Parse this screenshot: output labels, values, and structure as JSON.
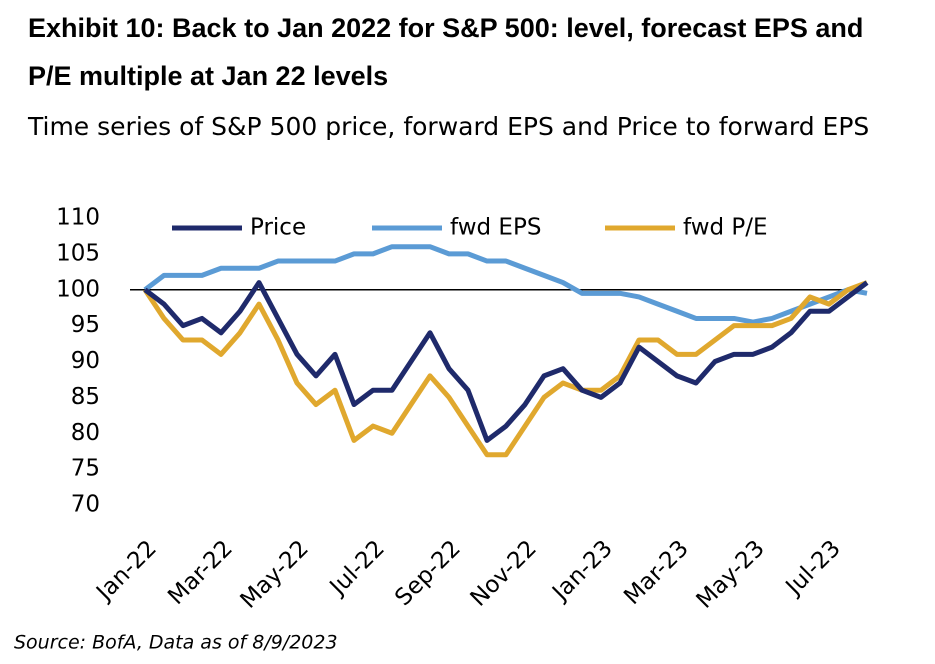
{
  "chart_data": {
    "type": "line",
    "title": "Exhibit 10: Back to Jan 2022 for S&P 500: level, forecast EPS and P/E multiple at Jan 22 levels",
    "subtitle": "Time series of S&P 500 price, forward EPS and Price to forward EPS",
    "source": "Source: BofA, Data as of 8/9/2023",
    "categories": [
      "Jan-22",
      null,
      null,
      null,
      "Mar-22",
      null,
      null,
      null,
      "May-22",
      null,
      null,
      null,
      "Jul-22",
      null,
      null,
      null,
      "Sep-22",
      null,
      null,
      null,
      "Nov-22",
      null,
      null,
      null,
      "Jan-23",
      null,
      null,
      null,
      "Mar-23",
      null,
      null,
      null,
      "May-23",
      null,
      null,
      null,
      "Jul-23",
      null,
      null
    ],
    "series": [
      {
        "name": "Price",
        "color": "#1f2a6b",
        "values": [
          100,
          98,
          95,
          96,
          94,
          97,
          101,
          96,
          91,
          88,
          91,
          84,
          86,
          86,
          90,
          94,
          89,
          86,
          79,
          81,
          84,
          88,
          89,
          86,
          85,
          87,
          92,
          90,
          88,
          87,
          90,
          91,
          91,
          92,
          94,
          97,
          97,
          99,
          101
        ]
      },
      {
        "name": "fwd EPS",
        "color": "#5b9bd5",
        "values": [
          100,
          102,
          102,
          102,
          103,
          103,
          103,
          104,
          104,
          104,
          104,
          105,
          105,
          106,
          106,
          106,
          105,
          105,
          104,
          104,
          103,
          102,
          101,
          99.5,
          99.5,
          99.5,
          99,
          98,
          97,
          96,
          96,
          96,
          95.5,
          96,
          97,
          98,
          99,
          100,
          99.5
        ]
      },
      {
        "name": "fwd P/E",
        "color": "#e0a82e",
        "values": [
          100,
          96,
          93,
          93,
          91,
          94,
          98,
          93,
          87,
          84,
          86,
          79,
          81,
          80,
          84,
          88,
          85,
          81,
          77,
          77,
          81,
          85,
          87,
          86,
          86,
          88,
          93,
          93,
          91,
          91,
          93,
          95,
          95,
          95,
          96,
          99,
          98,
          100,
          101
        ]
      }
    ],
    "reference_line": 100,
    "ylim": [
      70,
      110
    ],
    "yticks": [
      70,
      75,
      80,
      85,
      90,
      95,
      100,
      105,
      110
    ]
  }
}
